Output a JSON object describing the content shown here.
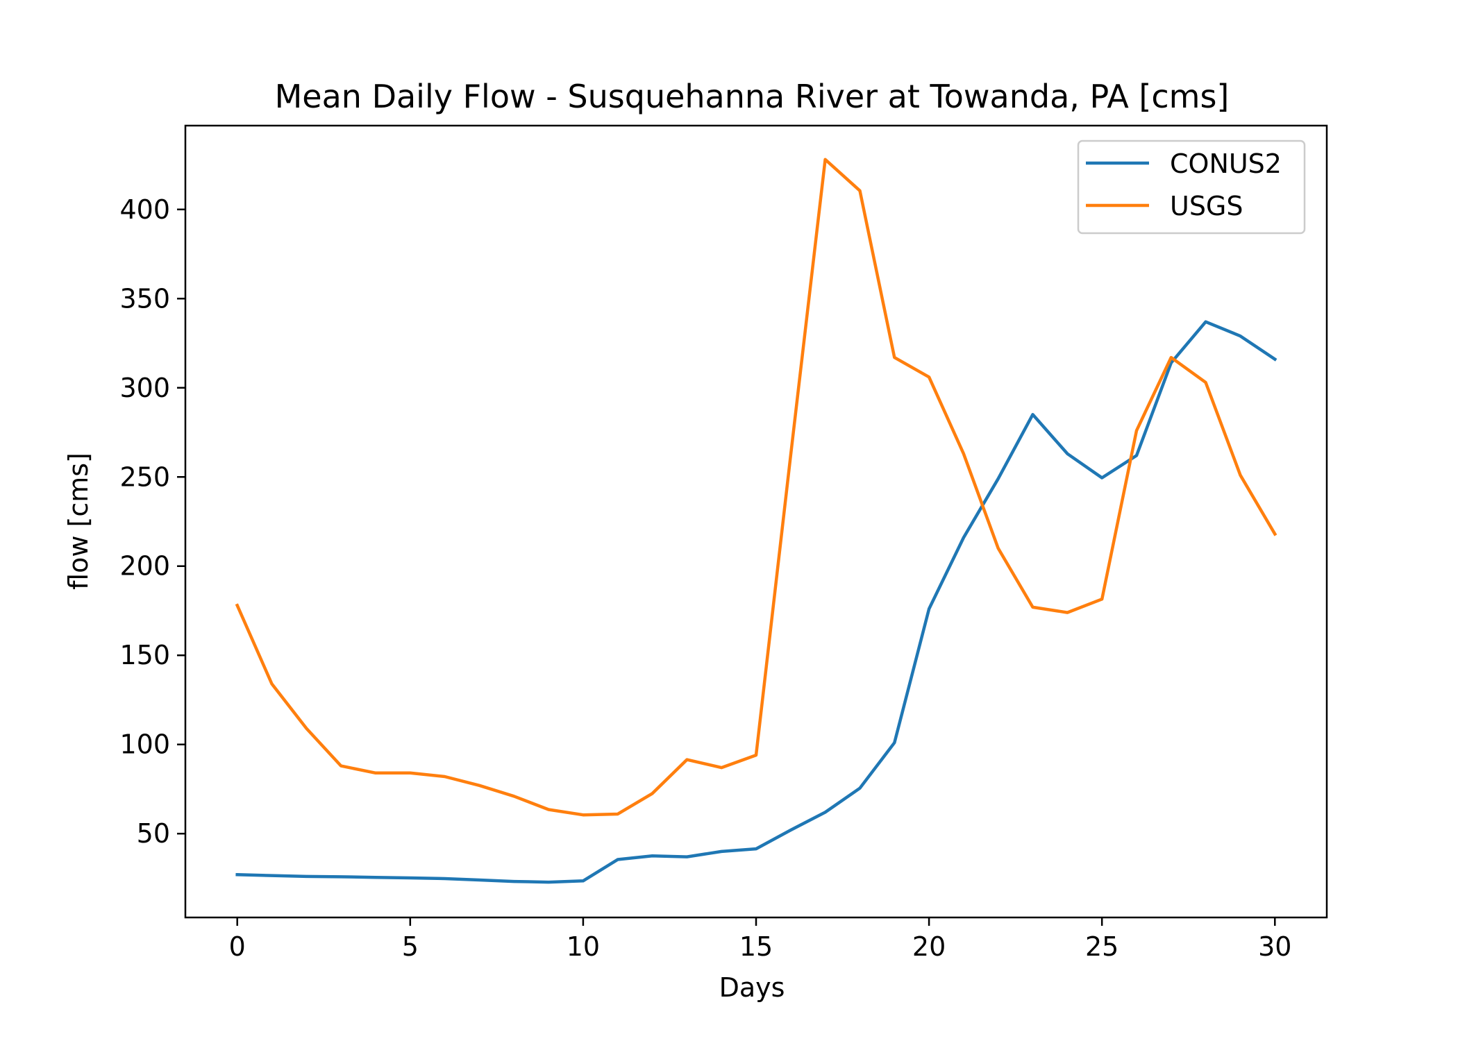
{
  "chart_data": {
    "type": "line",
    "title": "Mean Daily Flow - Susquehanna River at Towanda, PA [cms]",
    "xlabel": "Days",
    "ylabel": "flow [cms]",
    "xlim": [
      -1.5,
      31.5
    ],
    "ylim": [
      3,
      447
    ],
    "xticks": [
      0,
      5,
      10,
      15,
      20,
      25,
      30
    ],
    "yticks": [
      50,
      100,
      150,
      200,
      250,
      300,
      350,
      400
    ],
    "grid": false,
    "legend_position": "top-right",
    "x": [
      0,
      1,
      2,
      3,
      4,
      5,
      6,
      7,
      8,
      9,
      10,
      11,
      12,
      13,
      14,
      15,
      16,
      17,
      18,
      19,
      20,
      21,
      22,
      23,
      24,
      25,
      26,
      27,
      28,
      29,
      30
    ],
    "series": [
      {
        "name": "CONUS2",
        "color": "#1f77b4",
        "values": [
          27,
          26.5,
          26,
          25.8,
          25.5,
          25.2,
          24.8,
          24,
          23.2,
          22.8,
          23.5,
          35.5,
          37.5,
          37,
          40,
          41.5,
          52,
          62,
          75.5,
          101,
          176,
          216,
          249,
          285,
          263,
          249.5,
          262,
          314,
          337,
          329,
          316
        ]
      },
      {
        "name": "USGS",
        "color": "#ff7f0e",
        "values": [
          178,
          134,
          109,
          88,
          84,
          84,
          82,
          77,
          71,
          63.5,
          60.5,
          61,
          72.5,
          91.5,
          87,
          94,
          262,
          428,
          410.5,
          317,
          306,
          263,
          210,
          177,
          174,
          181.5,
          276,
          317,
          303,
          251,
          218
        ]
      }
    ]
  }
}
